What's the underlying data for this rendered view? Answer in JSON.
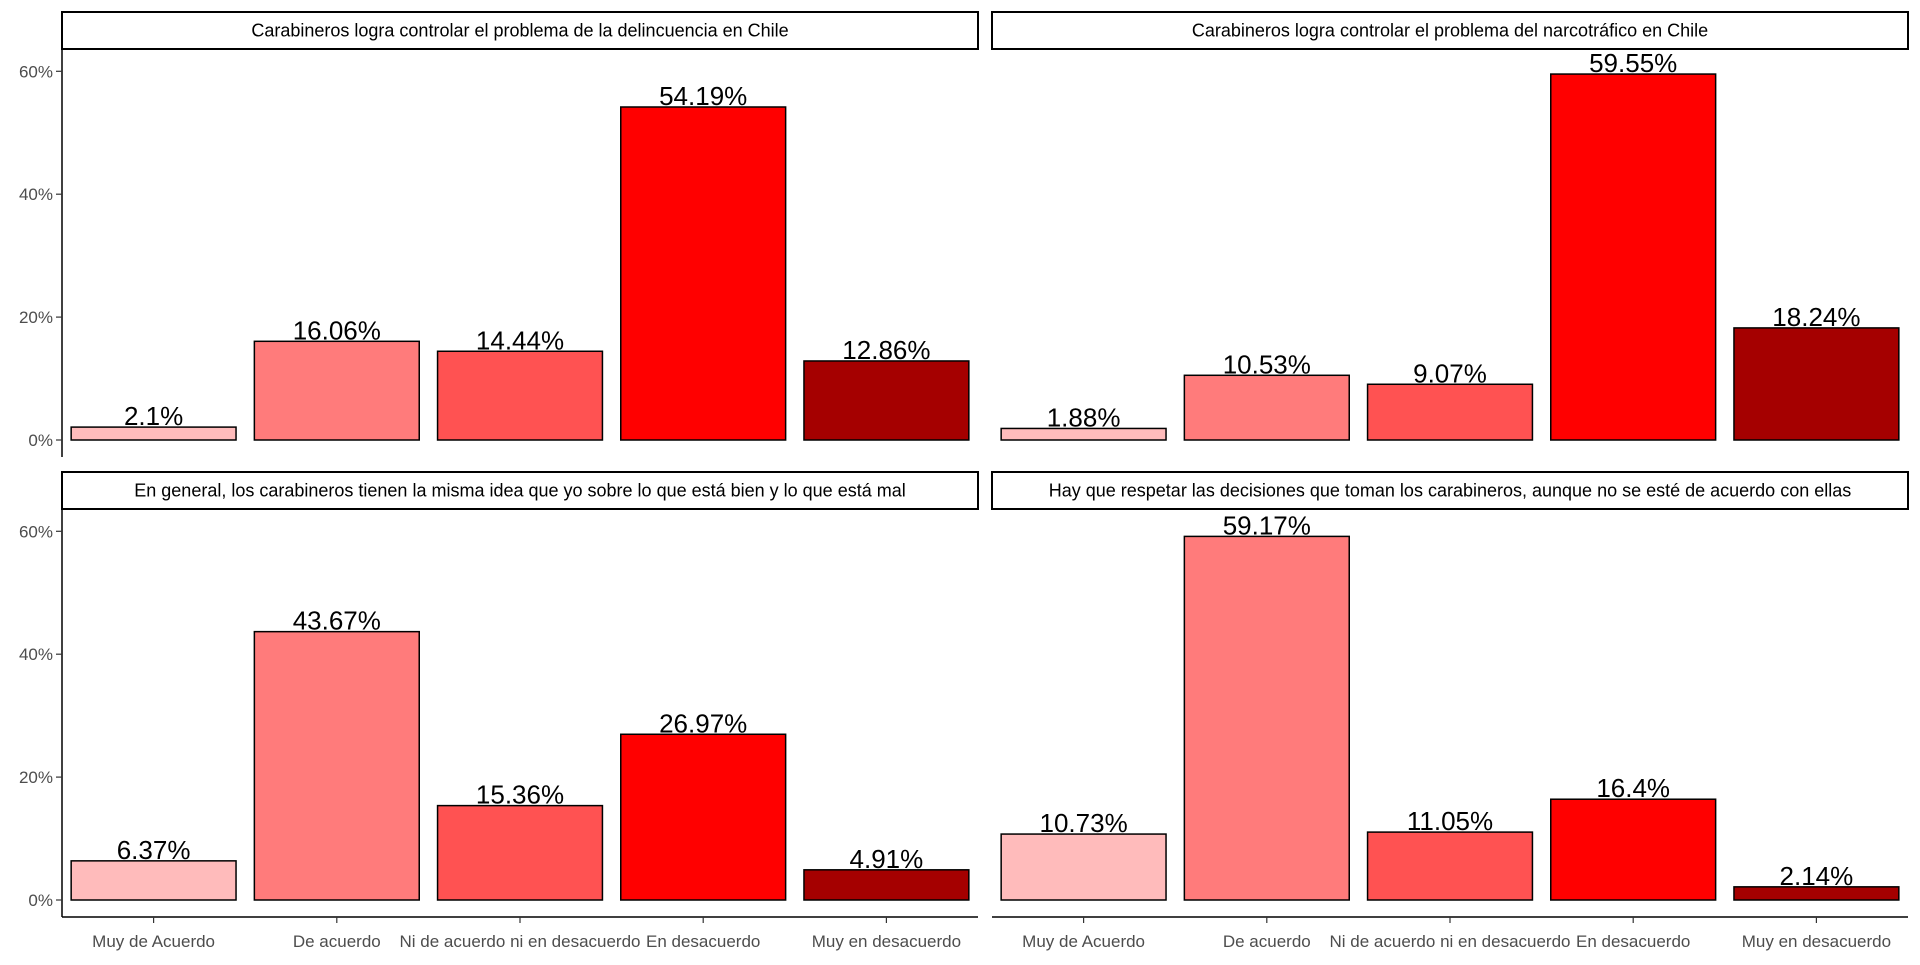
{
  "chart_data": {
    "type": "bar",
    "layout": "facet-grid-2x2",
    "categories": [
      "Muy de Acuerdo",
      "De acuerdo",
      "Ni de acuerdo ni en desacuerdo",
      "En desacuerdo",
      "Muy en desacuerdo"
    ],
    "colors": [
      "#ffbbbb",
      "#ff7b7b",
      "#ff5252",
      "#ff0000",
      "#a50000"
    ],
    "ylim": [
      0,
      0.62
    ],
    "yticks": [
      0,
      0.2,
      0.4,
      0.6
    ],
    "ytick_labels": [
      "0%",
      "20%",
      "40%",
      "60%"
    ],
    "grid": false,
    "legend": "none",
    "panels": [
      {
        "title": "Carabineros logra controlar el problema de la delincuencia en Chile",
        "values": [
          0.021,
          0.1606,
          0.1444,
          0.5419,
          0.1286
        ],
        "labels": [
          "2.1%",
          "16.06%",
          "14.44%",
          "54.19%",
          "12.86%"
        ]
      },
      {
        "title": "Carabineros logra controlar el problema del narcotráfico en Chile",
        "values": [
          0.0188,
          0.1053,
          0.0907,
          0.5955,
          0.1824
        ],
        "labels": [
          "1.88%",
          "10.53%",
          "9.07%",
          "59.55%",
          "18.24%"
        ]
      },
      {
        "title": "En general, los carabineros tienen la misma idea que yo sobre lo que está bien y lo que está mal",
        "values": [
          0.0637,
          0.4367,
          0.1536,
          0.2697,
          0.0491
        ],
        "labels": [
          "6.37%",
          "43.67%",
          "15.36%",
          "26.97%",
          "4.91%"
        ]
      },
      {
        "title": "Hay que respetar las decisiones que toman los carabineros, aunque no se esté de acuerdo con ellas",
        "values": [
          0.1073,
          0.5917,
          0.1105,
          0.164,
          0.0214
        ],
        "labels": [
          "10.73%",
          "59.17%",
          "11.05%",
          "16.4%",
          "2.14%"
        ]
      }
    ]
  }
}
